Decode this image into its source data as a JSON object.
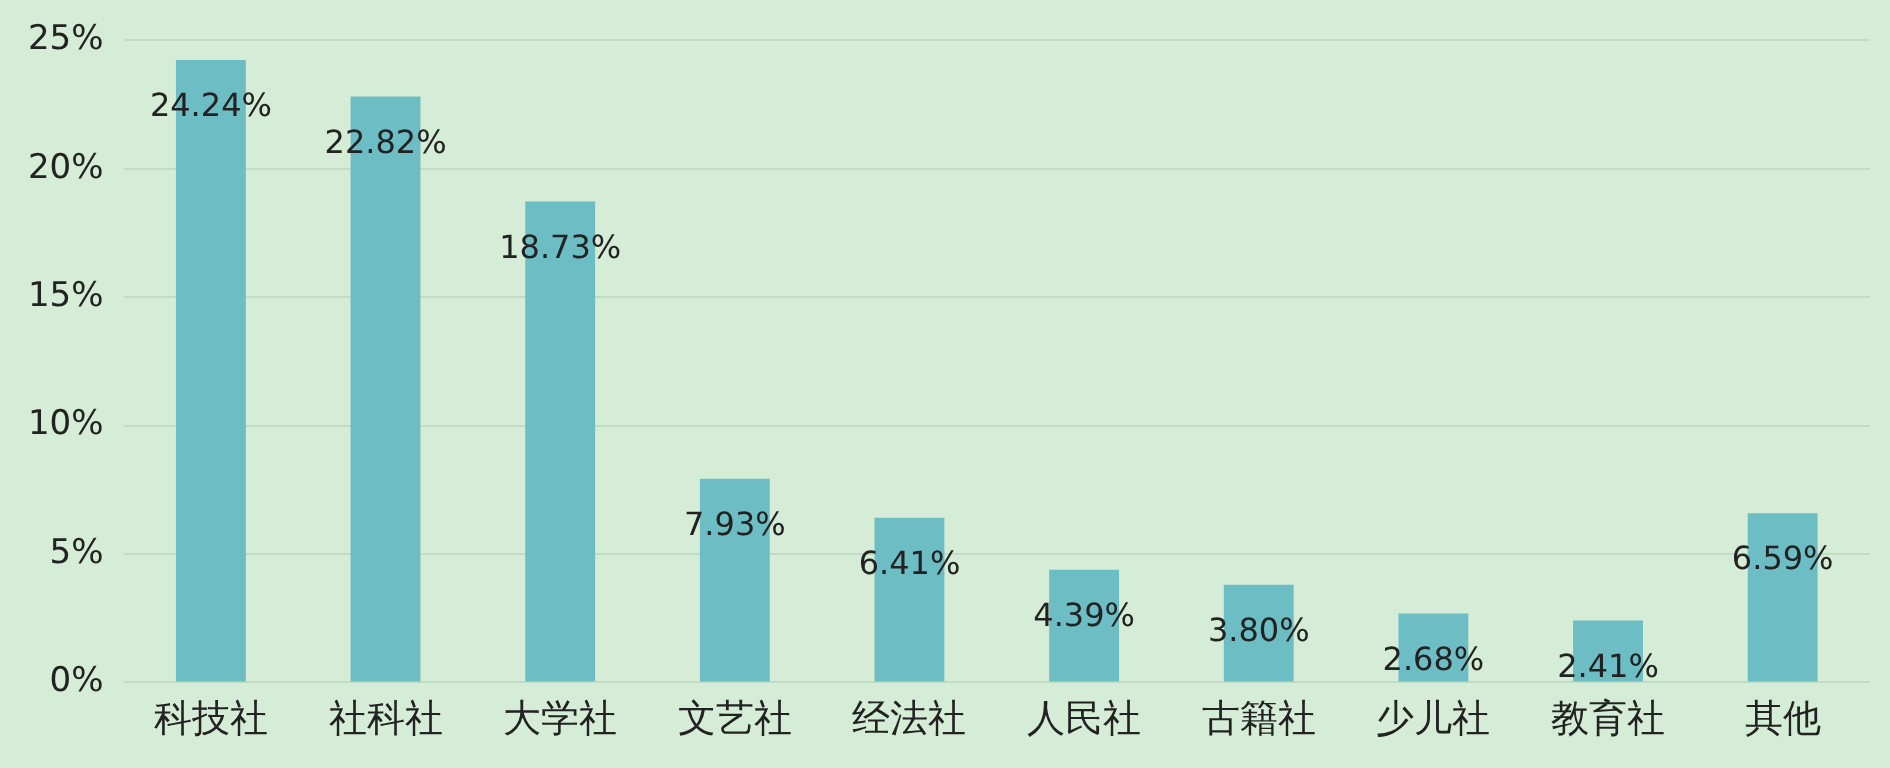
{
  "chart_data": {
    "type": "bar",
    "categories": [
      "科技社",
      "社科社",
      "大学社",
      "文艺社",
      "经法社",
      "人民社",
      "古籍社",
      "少儿社",
      "教育社",
      "其他"
    ],
    "values": [
      24.24,
      22.82,
      18.73,
      7.93,
      6.41,
      4.39,
      3.8,
      2.68,
      2.41,
      6.59
    ],
    "value_labels": [
      "24.24%",
      "22.82%",
      "18.73%",
      "7.93%",
      "6.41%",
      "4.39%",
      "3.80%",
      "2.68%",
      "2.41%",
      "6.59%"
    ],
    "color": "#6dbdc5",
    "ylim": [
      0,
      25
    ],
    "yticks": [
      {
        "value": 0,
        "label": "0%"
      },
      {
        "value": 5,
        "label": "5%"
      },
      {
        "value": 10,
        "label": "10%"
      },
      {
        "value": 15,
        "label": "15%"
      },
      {
        "value": 20,
        "label": "20%"
      },
      {
        "value": 25,
        "label": "25%"
      }
    ],
    "grid": "y",
    "legend": false
  }
}
